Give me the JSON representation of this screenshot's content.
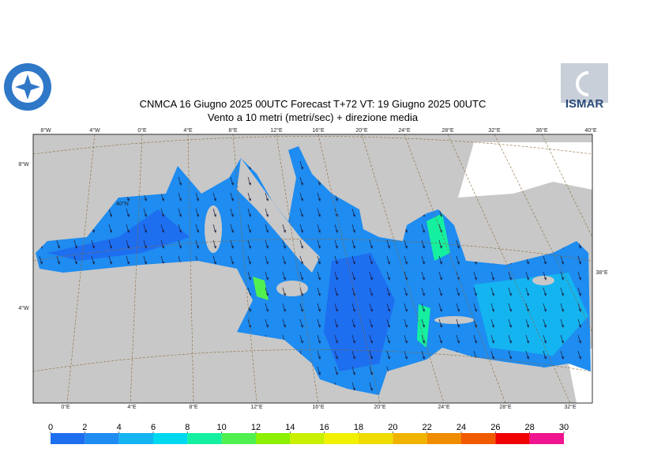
{
  "header": {
    "title": "CNMCA 16   Giugno  2025 00UTC Forecast T+72 VT: 19   Giugno  2025 00UTC",
    "subtitle": "Vento a 10 metri (metri/sec) + direzione media",
    "logo_right": "ISMAR"
  },
  "map": {
    "top_labels": [
      "8°W",
      "4°W",
      "0°E",
      "4°E",
      "8°E",
      "12°E",
      "16°E",
      "20°E",
      "24°E",
      "28°E",
      "32°E",
      "36°E",
      "40°E"
    ],
    "bottom_labels": [
      "0°E",
      "4°E",
      "8°E",
      "12°E",
      "16°E",
      "20°E",
      "24°E",
      "28°E",
      "32°E"
    ],
    "left_labels": [
      "8°W",
      "4°W"
    ],
    "right_labels": [
      "38°E"
    ],
    "inner_labels": [
      "40°N"
    ]
  },
  "colorbar": {
    "ticks": [
      0,
      2,
      4,
      6,
      8,
      10,
      12,
      14,
      16,
      18,
      20,
      22,
      24,
      26,
      28,
      30
    ],
    "colors": [
      "#1e6ef0",
      "#1e8cf0",
      "#14b4f0",
      "#00d8f0",
      "#14f0a0",
      "#50f050",
      "#8cf000",
      "#c8f000",
      "#f0f000",
      "#f0dc00",
      "#f0b400",
      "#f08c00",
      "#f05a00",
      "#f00000",
      "#f01490"
    ]
  }
}
